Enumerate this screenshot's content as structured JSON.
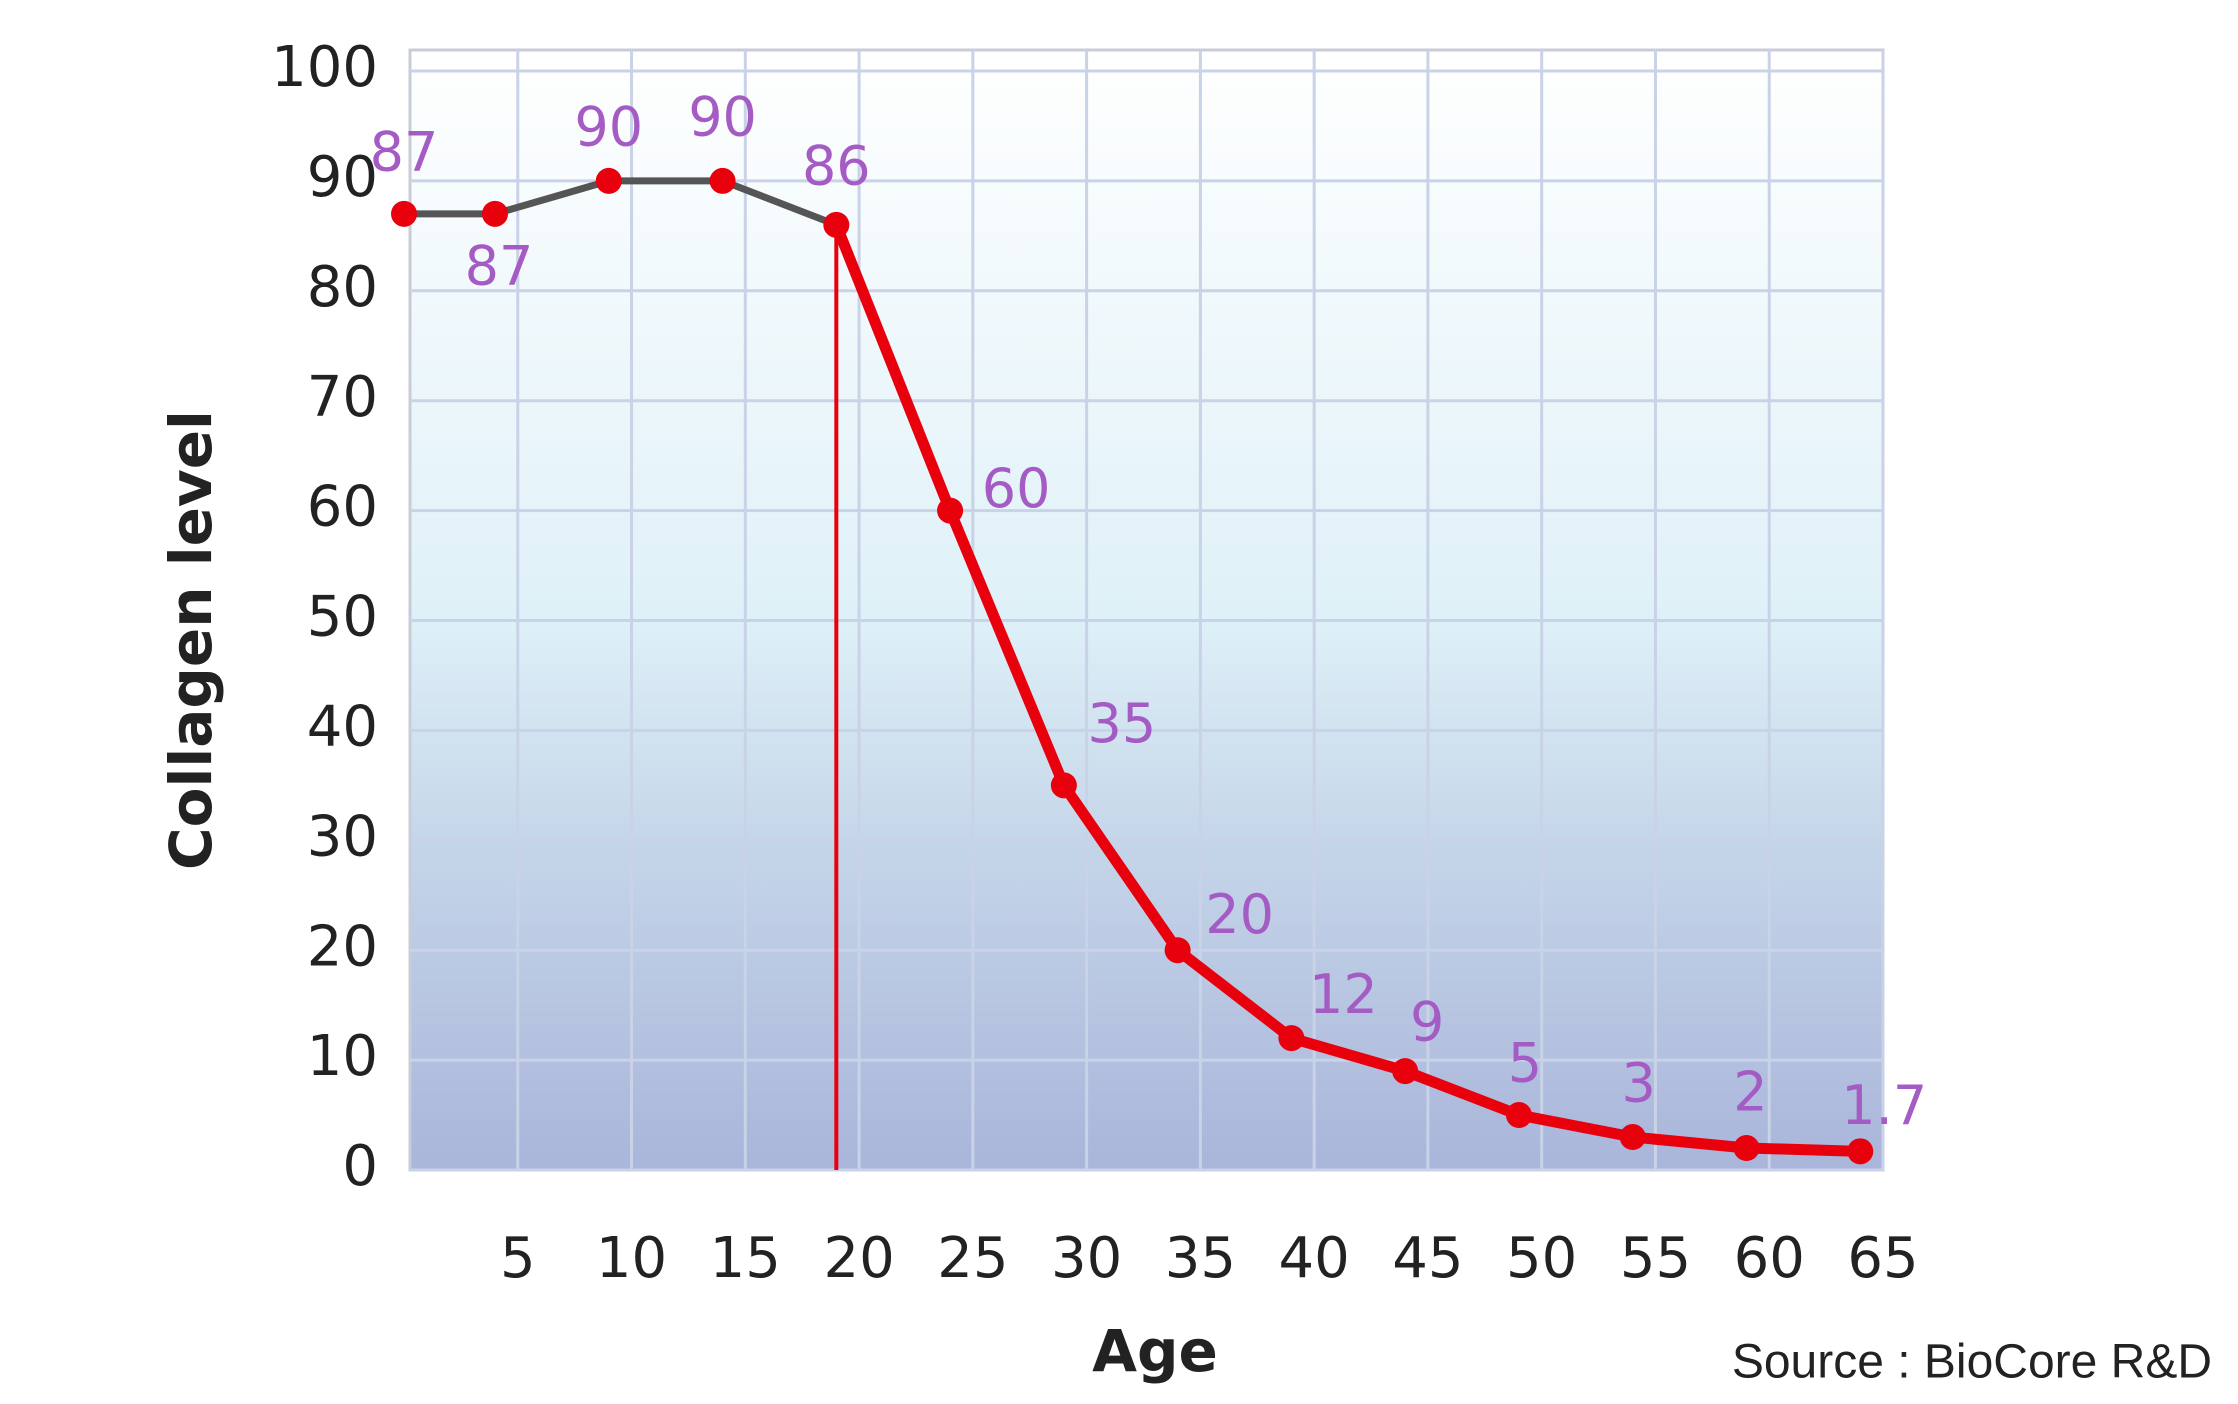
{
  "chart_data": {
    "type": "line",
    "x_label": "Age",
    "y_label": "Collagen level",
    "source": "Source : BioCore R&D",
    "x": [
      0,
      4,
      9,
      14,
      19,
      24,
      29,
      34,
      39,
      44,
      49,
      54,
      59,
      64
    ],
    "series": [
      {
        "color": "#e8000d",
        "line_color": "#555555",
        "highlight_from_x": 19,
        "values": [
          87,
          87,
          90,
          90,
          86,
          60,
          35,
          20,
          12,
          9,
          5,
          3,
          2,
          1.7
        ]
      }
    ],
    "label_color": "#a45cc4",
    "xlim": [
      0,
      65
    ],
    "xticks": [
      5,
      10,
      15,
      20,
      25,
      30,
      35,
      40,
      45,
      50,
      55,
      60,
      65
    ],
    "ylim": [
      0,
      100
    ],
    "yticks": [
      0,
      10,
      20,
      30,
      40,
      50,
      60,
      70,
      80,
      90,
      100
    ],
    "grid": true
  }
}
